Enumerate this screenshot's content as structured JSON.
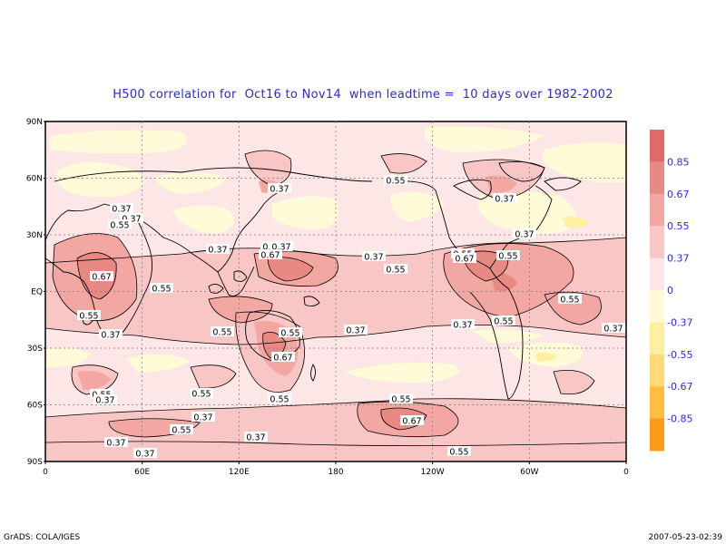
{
  "title": "H500 correlation for  Oct16 to Nov14  when leadtime =  10 days over 1982-2002",
  "footer_left": "GrADS: COLA/IGES",
  "footer_right": "2007-05-23-02:39",
  "lat_labels": [
    "90N",
    "60N",
    "30N",
    "EQ",
    "30S",
    "60S",
    "90S"
  ],
  "lon_labels": [
    "0",
    "60E",
    "120E",
    "180",
    "120W",
    "60W",
    "0"
  ],
  "colorbar": {
    "levels": [
      "0.85",
      "0.67",
      "0.55",
      "0.37",
      "0",
      "-0.37",
      "-0.55",
      "-0.67",
      "-0.85"
    ],
    "colors": [
      "#e06a6a",
      "#e88a84",
      "#f2a7a3",
      "#f8c6c4",
      "#fde6e6",
      "#fff9d8",
      "#fff0a0",
      "#ffd978",
      "#ffbe42",
      "#ff9a18"
    ]
  },
  "map_colors": {
    "pos_weak": "#fde6e6",
    "pos_037": "#f8c6c4",
    "pos_055": "#f2a7a3",
    "pos_067": "#e88a84",
    "neg_weak": "#fffbd8",
    "neg_037": "#fff0a0",
    "neg_055": "#ffd978"
  },
  "contour_labels": [
    {
      "text": "0.37"
    },
    {
      "text": "0.37"
    },
    {
      "text": "0.55"
    },
    {
      "text": "0.37"
    },
    {
      "text": "0.37"
    },
    {
      "text": "0.37"
    },
    {
      "text": "0.67"
    },
    {
      "text": "0.37"
    },
    {
      "text": "0.55"
    },
    {
      "text": "0.55"
    },
    {
      "text": "0.67"
    },
    {
      "text": "0.55"
    },
    {
      "text": "0.67"
    },
    {
      "text": "0.55"
    },
    {
      "text": "0.55"
    },
    {
      "text": "0.55"
    },
    {
      "text": "0.37"
    },
    {
      "text": "0.55"
    },
    {
      "text": "0.37"
    },
    {
      "text": "0.37"
    },
    {
      "text": "0.55"
    },
    {
      "text": "0.55"
    },
    {
      "text": "0.67"
    },
    {
      "text": "0.55"
    },
    {
      "text": "0.37"
    },
    {
      "text": "0.55"
    },
    {
      "text": "0.37"
    },
    {
      "text": "0.55"
    },
    {
      "text": "0.55"
    },
    {
      "text": "0.67"
    },
    {
      "text": "0.37"
    },
    {
      "text": "0.37"
    },
    {
      "text": "0.55"
    },
    {
      "text": "0.37"
    },
    {
      "text": "0.55"
    },
    {
      "text": "0.37"
    },
    {
      "text": "0.37"
    },
    {
      "text": "0.37"
    },
    {
      "text": "0.37"
    },
    {
      "text": "0.55"
    }
  ]
}
